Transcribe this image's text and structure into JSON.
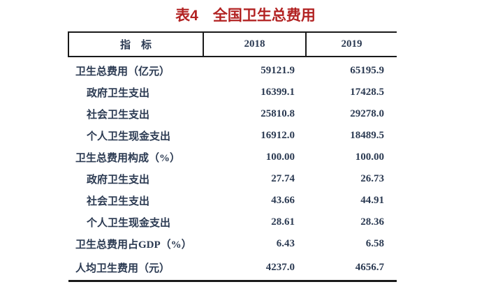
{
  "chart_data": {
    "type": "table",
    "title": "表4　全国卫生总费用",
    "columns": [
      "指　标",
      "2018",
      "2019"
    ],
    "rows": [
      {
        "label": "卫生总费用（亿元）",
        "indent": false,
        "values": [
          "59121.9",
          "65195.9"
        ]
      },
      {
        "label": "政府卫生支出",
        "indent": true,
        "values": [
          "16399.1",
          "17428.5"
        ]
      },
      {
        "label": "社会卫生支出",
        "indent": true,
        "values": [
          "25810.8",
          "29278.0"
        ]
      },
      {
        "label": "个人卫生现金支出",
        "indent": true,
        "values": [
          "16912.0",
          "18489.5"
        ]
      },
      {
        "label": "卫生总费用构成（%）",
        "indent": false,
        "values": [
          "100.00",
          "100.00"
        ]
      },
      {
        "label": "政府卫生支出",
        "indent": true,
        "values": [
          "27.74",
          "26.73"
        ]
      },
      {
        "label": "社会卫生支出",
        "indent": true,
        "values": [
          "43.66",
          "44.91"
        ]
      },
      {
        "label": "个人卫生现金支出",
        "indent": true,
        "values": [
          "28.61",
          "28.36"
        ]
      },
      {
        "label": "卫生总费用占GDP（%）",
        "indent": false,
        "values": [
          "6.43",
          "6.58"
        ]
      },
      {
        "label": "人均卫生费用（元）",
        "indent": false,
        "values": [
          "4237.0",
          "4656.7"
        ]
      }
    ],
    "colors": {
      "title": "#b22222",
      "text": "#2b3a52",
      "border": "#1a1a1a",
      "background": "#ffffff"
    }
  }
}
